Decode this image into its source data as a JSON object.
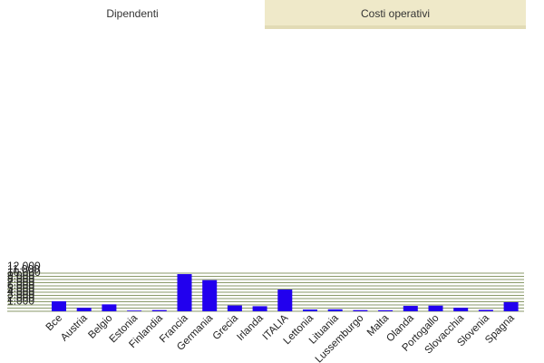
{
  "tabs": [
    {
      "label": "Dipendenti",
      "active": true
    },
    {
      "label": "Costi operativi",
      "active": false
    }
  ],
  "colors": {
    "bar": "#2200ee",
    "grid": "#8a9a6a",
    "tab_inactive": "#efe9c9"
  },
  "chart_data": {
    "type": "bar",
    "title": "",
    "xlabel": "",
    "ylabel": "",
    "ylim": [
      0,
      12500
    ],
    "yticks": [
      1000,
      2000,
      3000,
      4000,
      5000,
      6000,
      7000,
      8000,
      9000,
      10000,
      11000,
      12000
    ],
    "ytick_labels": [
      "1.000",
      "2.000",
      "3.000",
      "4.000",
      "5.000",
      "6.000",
      "7.000",
      "8.000",
      "9.000",
      "10.000",
      "11.000",
      "12.000"
    ],
    "categories": [
      "Bce",
      "Austria",
      "Belgio",
      "Estonia",
      "Finlandia",
      "Francia",
      "Germania",
      "Grecia",
      "Irlanda",
      "ITALIA",
      "Lettonia",
      "Lituania",
      "Lussemburgo",
      "Malta",
      "Olanda",
      "Portogallo",
      "Slovacchia",
      "Slovenia",
      "Spagna"
    ],
    "values": [
      3150,
      1080,
      2180,
      230,
      380,
      11700,
      9800,
      1840,
      1600,
      6850,
      560,
      620,
      370,
      330,
      1700,
      1780,
      1090,
      450,
      2870
    ]
  }
}
